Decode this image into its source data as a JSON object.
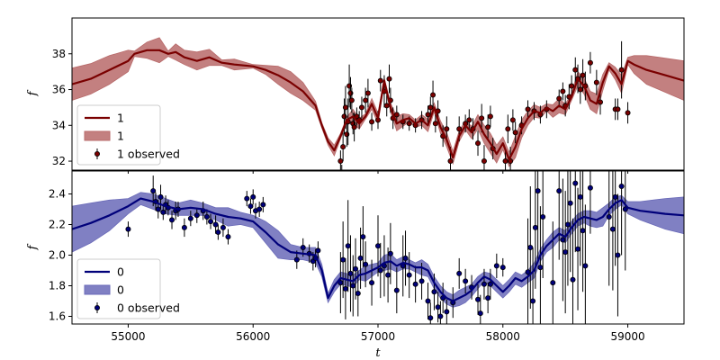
{
  "figure": {
    "xlabel": "t"
  },
  "chart_data": [
    {
      "type": "line",
      "panel": "top",
      "ylabel": "f",
      "xlim": [
        54550,
        59450
      ],
      "ylim": [
        31.5,
        40.0
      ],
      "xticks": [
        55000,
        56000,
        57000,
        58000,
        59000
      ],
      "yticks": [
        32,
        34,
        36,
        38
      ],
      "grid": false,
      "legend_position": "lower-left",
      "legend": [
        "1",
        "1",
        "1 observed"
      ],
      "colors": {
        "line": "#7a0000",
        "band": "#b86a6a",
        "points": "#7a0000"
      },
      "model_mean": {
        "x": [
          54550,
          54700,
          54850,
          55000,
          55050,
          55150,
          55250,
          55320,
          55380,
          55450,
          55550,
          55650,
          55750,
          55850,
          56000,
          56100,
          56200,
          56300,
          56400,
          56500,
          56550,
          56600,
          56650,
          56700,
          56750,
          56800,
          56850,
          56900,
          56950,
          57000,
          57050,
          57100,
          57150,
          57200,
          57250,
          57300,
          57350,
          57400,
          57450,
          57500,
          57550,
          57600,
          57650,
          57700,
          57750,
          57800,
          57850,
          57900,
          57950,
          58000,
          58050,
          58100,
          58150,
          58200,
          58250,
          58300,
          58350,
          58400,
          58450,
          58500,
          58550,
          58600,
          58650,
          58700,
          58750,
          58800,
          58850,
          58900,
          58950,
          59000,
          59050,
          59150,
          59250,
          59350,
          59450
        ],
        "y": [
          36.3,
          36.6,
          37.1,
          37.6,
          38.0,
          38.2,
          38.2,
          38.0,
          38.1,
          37.8,
          37.6,
          37.8,
          37.5,
          37.4,
          37.3,
          37.1,
          36.8,
          36.4,
          35.9,
          35.1,
          34.0,
          33.1,
          32.6,
          33.4,
          34.3,
          34.5,
          34.1,
          34.5,
          35.2,
          34.4,
          36.5,
          35.0,
          34.1,
          34.3,
          34.4,
          34.1,
          34.3,
          34.0,
          35.0,
          33.9,
          33.2,
          32.2,
          33.4,
          34.0,
          33.6,
          34.2,
          33.5,
          33.0,
          32.4,
          33.0,
          32.1,
          32.8,
          33.8,
          34.4,
          34.8,
          34.7,
          35.0,
          34.8,
          35.1,
          34.9,
          35.6,
          36.6,
          36.2,
          35.4,
          35.2,
          36.4,
          37.3,
          36.9,
          36.3,
          37.6,
          37.4,
          37.1,
          36.9,
          36.7,
          36.5
        ],
        "sigma": [
          0.9,
          0.85,
          0.8,
          0.6,
          0.15,
          0.45,
          0.7,
          0.15,
          0.45,
          0.4,
          0.5,
          0.45,
          0.15,
          0.3,
          0.1,
          0.25,
          0.5,
          0.6,
          0.5,
          0.25,
          0.15,
          0.2,
          0.3,
          0.15,
          0.15,
          0.4,
          0.3,
          0.15,
          0.3,
          0.3,
          0.15,
          0.25,
          0.4,
          0.35,
          0.2,
          0.2,
          0.3,
          0.35,
          0.25,
          0.35,
          0.4,
          0.35,
          0.3,
          0.25,
          0.35,
          0.4,
          0.5,
          0.55,
          0.5,
          0.35,
          0.4,
          0.6,
          0.5,
          0.4,
          0.35,
          0.3,
          0.2,
          0.35,
          0.4,
          0.3,
          0.2,
          0.4,
          0.45,
          0.5,
          0.55,
          0.45,
          0.2,
          0.35,
          0.5,
          0.2,
          0.5,
          0.8,
          0.9,
          1.0,
          1.1
        ]
      },
      "observed": {
        "x": [
          56700,
          56710,
          56720,
          56730,
          56740,
          56750,
          56760,
          56770,
          56780,
          56790,
          56800,
          56810,
          56830,
          56850,
          56870,
          56900,
          56920,
          56950,
          57000,
          57020,
          57050,
          57070,
          57090,
          57100,
          57120,
          57150,
          57200,
          57250,
          57300,
          57350,
          57400,
          57420,
          57440,
          57460,
          57480,
          57520,
          57550,
          57580,
          57650,
          57700,
          57730,
          57760,
          57800,
          57830,
          57850,
          57880,
          57900,
          57920,
          58020,
          58040,
          58060,
          58080,
          58100,
          58150,
          58200,
          58250,
          58300,
          58350,
          58450,
          58480,
          58500,
          58530,
          58550,
          58580,
          58600,
          58620,
          58640,
          58660,
          58700,
          58750,
          58780,
          58900,
          58920,
          58950,
          59000
        ],
        "y": [
          32.0,
          31.3,
          32.8,
          34.5,
          35.0,
          33.5,
          34.2,
          36.2,
          35.8,
          35.4,
          34.1,
          33.9,
          34.5,
          34.3,
          35.0,
          35.4,
          35.8,
          34.2,
          34.3,
          36.5,
          35.9,
          35.1,
          36.6,
          35.4,
          34.4,
          34.6,
          34.2,
          34.1,
          34.0,
          34.3,
          34.6,
          35.0,
          35.7,
          34.1,
          34.8,
          33.4,
          33.8,
          32.0,
          33.8,
          34.1,
          34.3,
          33.8,
          33.0,
          34.4,
          32.0,
          33.9,
          34.5,
          32.7,
          32.0,
          33.8,
          32.0,
          34.3,
          33.6,
          34.0,
          34.9,
          34.8,
          34.6,
          34.9,
          35.5,
          35.9,
          35.1,
          35.6,
          36.2,
          37.1,
          36.6,
          36.0,
          36.8,
          36.2,
          37.5,
          36.4,
          35.3,
          34.9,
          34.9,
          37.1,
          34.7
        ],
        "err": [
          0.6,
          0.5,
          0.8,
          1.0,
          1.2,
          0.7,
          1.3,
          1.2,
          0.9,
          0.7,
          0.6,
          0.8,
          0.5,
          0.5,
          0.6,
          0.7,
          0.8,
          0.5,
          0.5,
          0.6,
          0.9,
          0.6,
          0.8,
          0.7,
          0.6,
          0.5,
          0.4,
          0.4,
          0.4,
          0.5,
          0.5,
          0.6,
          0.8,
          0.5,
          0.6,
          0.6,
          0.7,
          0.8,
          0.7,
          0.5,
          0.6,
          0.6,
          0.7,
          0.8,
          0.9,
          0.7,
          0.6,
          0.6,
          0.7,
          0.8,
          0.8,
          0.6,
          0.6,
          0.5,
          0.5,
          0.5,
          0.5,
          0.5,
          0.5,
          0.5,
          0.6,
          0.7,
          0.6,
          0.7,
          0.8,
          0.8,
          0.9,
          0.8,
          0.6,
          0.7,
          0.7,
          0.6,
          0.6,
          1.6,
          0.6
        ]
      }
    },
    {
      "type": "line",
      "panel": "bottom",
      "ylabel": "f",
      "xlim": [
        54550,
        59450
      ],
      "ylim": [
        1.55,
        2.55
      ],
      "xticks": [
        55000,
        56000,
        57000,
        58000,
        59000
      ],
      "yticks": [
        1.6,
        1.8,
        2.0,
        2.2,
        2.4
      ],
      "grid": false,
      "legend_position": "lower-left",
      "legend": [
        "0",
        "0",
        "0 observed"
      ],
      "colors": {
        "line": "#00007a",
        "band": "#6a6ab8",
        "points": "#00007a"
      },
      "model_mean": {
        "x": [
          54550,
          54700,
          54850,
          55000,
          55100,
          55200,
          55300,
          55400,
          55500,
          55600,
          55700,
          55800,
          55900,
          56000,
          56100,
          56200,
          56300,
          56400,
          56500,
          56550,
          56600,
          56650,
          56700,
          56750,
          56800,
          56850,
          56900,
          56950,
          57000,
          57050,
          57100,
          57150,
          57200,
          57250,
          57300,
          57350,
          57400,
          57450,
          57500,
          57550,
          57600,
          57650,
          57700,
          57750,
          57800,
          57850,
          57900,
          57950,
          58000,
          58050,
          58100,
          58150,
          58200,
          58250,
          58300,
          58350,
          58400,
          58450,
          58500,
          58550,
          58600,
          58650,
          58700,
          58750,
          58800,
          58850,
          58900,
          58950,
          59000,
          59100,
          59200,
          59300,
          59450
        ],
        "y": [
          2.17,
          2.21,
          2.26,
          2.32,
          2.37,
          2.35,
          2.32,
          2.3,
          2.31,
          2.3,
          2.27,
          2.25,
          2.24,
          2.22,
          2.15,
          2.07,
          2.02,
          2.01,
          2.0,
          1.9,
          1.72,
          1.8,
          1.85,
          1.84,
          1.83,
          1.87,
          1.88,
          1.9,
          1.92,
          1.95,
          1.96,
          1.93,
          1.95,
          1.94,
          1.92,
          1.92,
          1.9,
          1.82,
          1.76,
          1.72,
          1.7,
          1.72,
          1.74,
          1.77,
          1.82,
          1.86,
          1.84,
          1.8,
          1.76,
          1.8,
          1.85,
          1.83,
          1.86,
          1.9,
          2.0,
          2.06,
          2.1,
          2.14,
          2.12,
          2.18,
          2.23,
          2.25,
          2.24,
          2.23,
          2.25,
          2.3,
          2.34,
          2.36,
          2.31,
          2.29,
          2.28,
          2.27,
          2.26
        ],
        "sigma": [
          0.15,
          0.13,
          0.1,
          0.05,
          0.04,
          0.05,
          0.05,
          0.04,
          0.05,
          0.04,
          0.04,
          0.06,
          0.04,
          0.04,
          0.07,
          0.09,
          0.05,
          0.04,
          0.05,
          0.04,
          0.03,
          0.04,
          0.04,
          0.04,
          0.04,
          0.03,
          0.05,
          0.04,
          0.03,
          0.05,
          0.05,
          0.04,
          0.04,
          0.03,
          0.03,
          0.05,
          0.04,
          0.04,
          0.04,
          0.04,
          0.04,
          0.05,
          0.05,
          0.04,
          0.04,
          0.03,
          0.04,
          0.04,
          0.04,
          0.04,
          0.04,
          0.04,
          0.04,
          0.05,
          0.04,
          0.04,
          0.05,
          0.04,
          0.04,
          0.04,
          0.04,
          0.04,
          0.05,
          0.05,
          0.06,
          0.04,
          0.04,
          0.03,
          0.04,
          0.06,
          0.08,
          0.1,
          0.12
        ]
      },
      "observed": {
        "x": [
          55000,
          55200,
          55220,
          55240,
          55260,
          55280,
          55300,
          55320,
          55350,
          55380,
          55400,
          55450,
          55500,
          55550,
          55600,
          55630,
          55660,
          55700,
          55720,
          55760,
          55800,
          55950,
          55980,
          56000,
          56020,
          56050,
          56080,
          56350,
          56400,
          56450,
          56480,
          56500,
          56520,
          56700,
          56720,
          56740,
          56760,
          56780,
          56800,
          56820,
          56840,
          56860,
          56880,
          56900,
          56950,
          57000,
          57020,
          57050,
          57080,
          57100,
          57150,
          57200,
          57220,
          57250,
          57300,
          57350,
          57400,
          57420,
          57450,
          57480,
          57500,
          57520,
          57550,
          57600,
          57650,
          57700,
          57750,
          57800,
          57820,
          57850,
          57880,
          57900,
          57950,
          58000,
          58200,
          58220,
          58240,
          58260,
          58280,
          58300,
          58320,
          58400,
          58450,
          58480,
          58500,
          58520,
          58540,
          58560,
          58580,
          58600,
          58620,
          58640,
          58660,
          58700,
          58850,
          58880,
          58900,
          58920,
          58950,
          58980
        ],
        "y": [
          2.17,
          2.42,
          2.35,
          2.3,
          2.38,
          2.28,
          2.33,
          2.31,
          2.23,
          2.29,
          2.3,
          2.18,
          2.24,
          2.26,
          2.29,
          2.25,
          2.22,
          2.2,
          2.15,
          2.18,
          2.12,
          2.37,
          2.32,
          2.38,
          2.29,
          2.3,
          2.33,
          1.97,
          2.05,
          2.01,
          1.96,
          1.98,
          2.03,
          1.82,
          1.97,
          1.78,
          2.06,
          1.88,
          1.8,
          1.91,
          1.75,
          1.98,
          2.12,
          1.94,
          1.82,
          2.06,
          1.9,
          1.93,
          1.87,
          2.01,
          1.77,
          1.93,
          1.98,
          1.87,
          1.81,
          1.83,
          1.7,
          1.59,
          1.76,
          1.66,
          1.6,
          1.72,
          1.63,
          1.69,
          1.88,
          1.83,
          1.79,
          1.71,
          1.62,
          1.81,
          1.72,
          1.81,
          1.93,
          1.92,
          1.89,
          2.05,
          1.7,
          2.18,
          2.42,
          1.92,
          2.25,
          1.82,
          2.42,
          2.1,
          2.02,
          2.2,
          2.34,
          1.84,
          2.47,
          2.04,
          2.38,
          2.16,
          1.93,
          2.44,
          2.25,
          2.17,
          2.38,
          2.0,
          2.45,
          2.3
        ],
        "err": [
          0.05,
          0.1,
          0.06,
          0.06,
          0.08,
          0.05,
          0.06,
          0.05,
          0.06,
          0.06,
          0.05,
          0.06,
          0.05,
          0.05,
          0.06,
          0.05,
          0.05,
          0.06,
          0.05,
          0.06,
          0.05,
          0.05,
          0.05,
          0.05,
          0.05,
          0.05,
          0.05,
          0.06,
          0.06,
          0.06,
          0.06,
          0.06,
          0.06,
          0.2,
          0.25,
          0.2,
          0.3,
          0.25,
          0.2,
          0.2,
          0.15,
          0.2,
          0.2,
          0.15,
          0.15,
          0.2,
          0.18,
          0.2,
          0.18,
          0.2,
          0.15,
          0.2,
          0.18,
          0.15,
          0.12,
          0.12,
          0.12,
          0.1,
          0.12,
          0.1,
          0.1,
          0.1,
          0.08,
          0.1,
          0.1,
          0.08,
          0.08,
          0.1,
          0.12,
          0.1,
          0.1,
          0.1,
          0.08,
          0.06,
          0.35,
          0.4,
          0.35,
          0.4,
          0.45,
          0.4,
          0.4,
          0.4,
          0.45,
          0.4,
          0.4,
          0.4,
          0.45,
          0.4,
          0.45,
          0.4,
          0.45,
          0.4,
          0.4,
          0.3,
          0.45,
          0.4,
          0.45,
          0.4,
          0.45,
          0.4
        ]
      }
    }
  ]
}
